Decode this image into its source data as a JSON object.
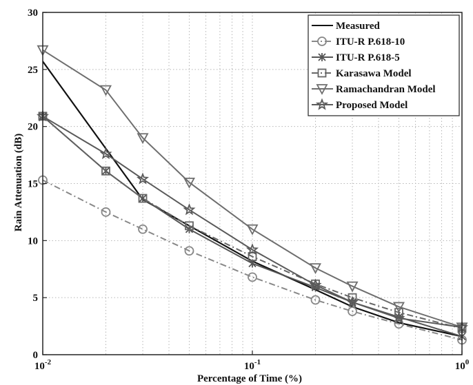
{
  "chart_data": {
    "type": "line",
    "xscale": "log",
    "xlim": [
      0.01,
      1
    ],
    "ylim": [
      0,
      30
    ],
    "xlabel": "Percentage of Time (%)",
    "ylabel": "Rain Attenuation (dB)",
    "grid": true,
    "legend_position": "top-right",
    "x_ticks": [
      {
        "value": 0.01,
        "base": "10",
        "exp": "-2"
      },
      {
        "value": 0.1,
        "base": "10",
        "exp": "-1"
      },
      {
        "value": 1,
        "base": "10",
        "exp": "0"
      }
    ],
    "y_ticks": [
      "0",
      "5",
      "10",
      "15",
      "20",
      "25",
      "30"
    ],
    "series": [
      {
        "name": "Measured",
        "color": "#111111",
        "dash": "solid",
        "marker": "none",
        "x": [
          0.01,
          0.03,
          0.05,
          0.1,
          0.2,
          0.3,
          0.5,
          1
        ],
        "y": [
          25.7,
          13.6,
          11.3,
          8.2,
          5.7,
          4.2,
          2.8,
          1.6
        ]
      },
      {
        "name": "ITU-R P.618-10",
        "color": "#888888",
        "dash": "dashdot",
        "marker": "circle",
        "x": [
          0.01,
          0.02,
          0.03,
          0.05,
          0.1,
          0.2,
          0.3,
          0.5,
          1
        ],
        "y": [
          15.3,
          12.5,
          11.0,
          9.1,
          6.8,
          4.8,
          3.8,
          2.7,
          1.3
        ]
      },
      {
        "name": "ITU-R P.618-5",
        "color": "#555555",
        "dash": "solid",
        "marker": "x",
        "x": [
          0.01,
          0.02,
          0.03,
          0.05,
          0.1,
          0.2,
          0.3,
          0.5,
          1
        ],
        "y": [
          20.9,
          16.1,
          13.7,
          11.0,
          8.0,
          5.9,
          4.6,
          3.3,
          1.6
        ]
      },
      {
        "name": "Karasawa Model",
        "color": "#666666",
        "dash": "dashdot",
        "marker": "square",
        "x": [
          0.01,
          0.02,
          0.03,
          0.05,
          0.1,
          0.2,
          0.3,
          0.5,
          1
        ],
        "y": [
          20.9,
          16.1,
          13.7,
          11.3,
          8.6,
          6.2,
          5.0,
          3.7,
          2.3
        ]
      },
      {
        "name": "Ramachandran Model",
        "color": "#6e6e6e",
        "dash": "solid",
        "marker": "triangle-down",
        "x": [
          0.01,
          0.02,
          0.03,
          0.05,
          0.1,
          0.2,
          0.3,
          0.5,
          1
        ],
        "y": [
          26.7,
          23.2,
          19.0,
          15.1,
          11.0,
          7.6,
          6.0,
          4.2,
          2.4
        ]
      },
      {
        "name": "Proposed Model",
        "color": "#5a5a5a",
        "dash": "solid",
        "marker": "star",
        "x": [
          0.01,
          0.02,
          0.03,
          0.05,
          0.1,
          0.2,
          0.3,
          0.5,
          1
        ],
        "y": [
          20.9,
          17.6,
          15.4,
          12.7,
          9.2,
          6.1,
          4.6,
          3.2,
          2.4
        ]
      }
    ]
  }
}
